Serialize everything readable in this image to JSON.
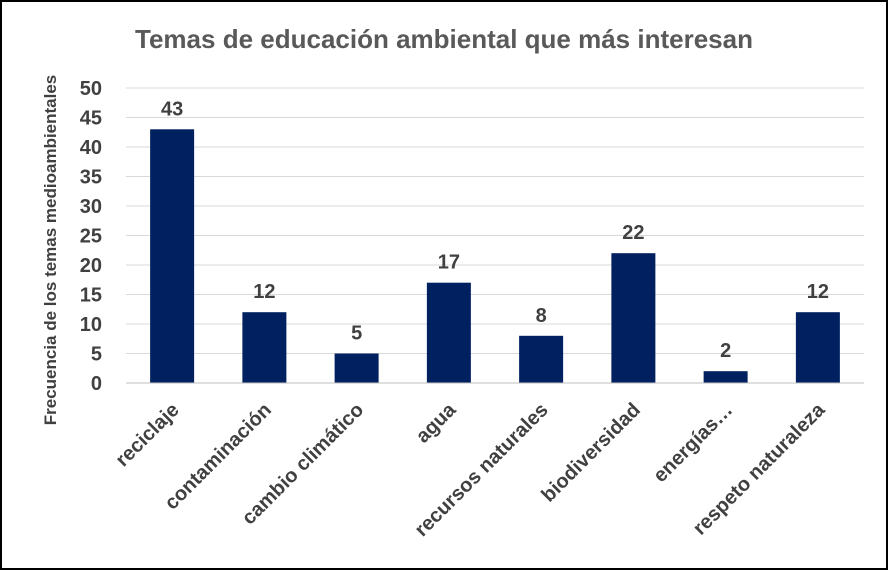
{
  "chart_data": {
    "type": "bar",
    "title": "Temas de educación ambiental que más  interesan",
    "xlabel": "",
    "ylabel": "Frecuencia de los temas medioambientales",
    "categories": [
      "reciclaje",
      "contaminación",
      "cambio climático",
      "agua",
      "recursos naturales",
      "biodiversidad",
      "energías…",
      "respeto naturaleza"
    ],
    "values": [
      43,
      12,
      5,
      17,
      8,
      22,
      2,
      12
    ],
    "ylim": [
      0,
      50
    ],
    "yticks": [
      0,
      5,
      10,
      15,
      20,
      25,
      30,
      35,
      40,
      45,
      50
    ],
    "grid": true,
    "data_labels": true,
    "bar_color": "#002060"
  }
}
